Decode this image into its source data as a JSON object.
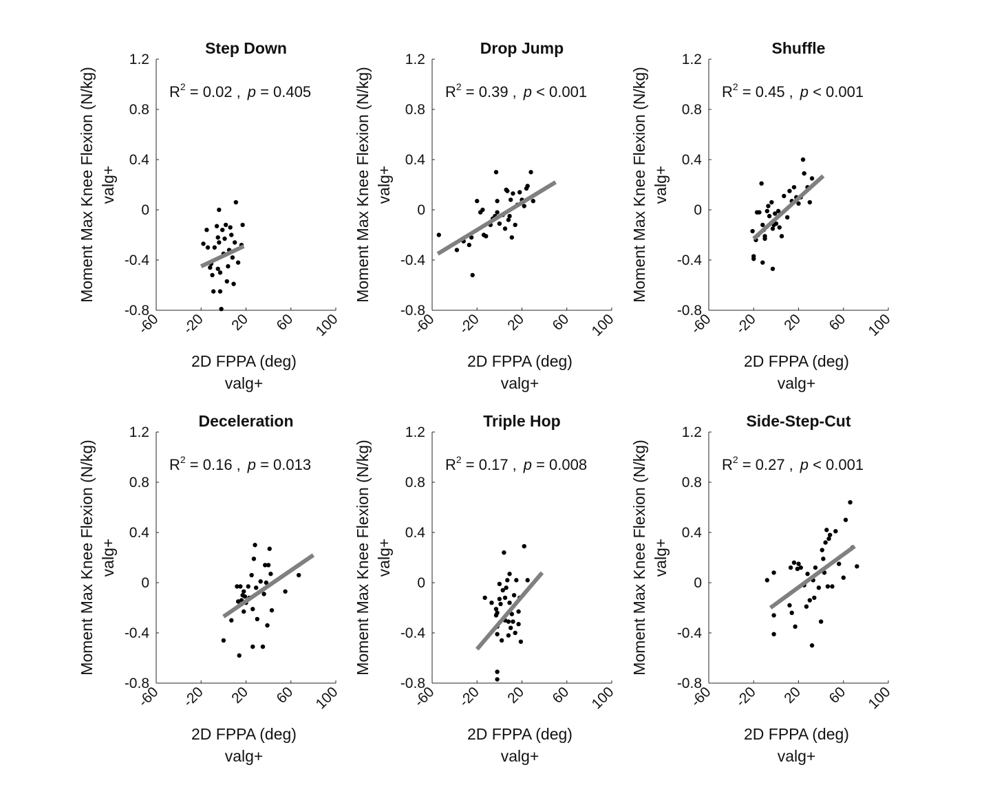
{
  "figure": {
    "xlabel": "2D FPPA (deg)",
    "xsublabel": "valg+",
    "ylabel": "Moment Max Knee Flexion (N/kg)",
    "ysublabel": "valg+",
    "xlim": [
      -60,
      100
    ],
    "ylim": [
      -0.8,
      1.2
    ],
    "xticks": [
      "-60",
      "-20",
      "20",
      "60",
      "100"
    ],
    "yticks": [
      "-0.8",
      "-0.4",
      "0",
      "0.4",
      "0.8",
      "1.2"
    ],
    "r2_prefix": "R",
    "r2_sup": "2",
    "r2_eq": " = ",
    "p_symbol": "p",
    "colors": {
      "points": "#000000",
      "fit": "#808080",
      "axis": "#262626"
    }
  },
  "chart_data": [
    {
      "type": "scatter",
      "title": "Step Down",
      "r2": "0.02",
      "p_text": " = 0.405",
      "fit": {
        "x": [
          -20,
          18
        ],
        "y": [
          -0.45,
          -0.29
        ]
      },
      "points": [
        [
          -18,
          -0.27
        ],
        [
          -15,
          -0.16
        ],
        [
          -14,
          -0.3
        ],
        [
          -12,
          -0.46
        ],
        [
          -11,
          -0.43
        ],
        [
          -10,
          -0.52
        ],
        [
          -9,
          -0.65
        ],
        [
          -8,
          -0.3
        ],
        [
          -6,
          -0.13
        ],
        [
          -5,
          -0.22
        ],
        [
          -5,
          -0.47
        ],
        [
          -4,
          -0.0
        ],
        [
          -4,
          -0.26
        ],
        [
          -3,
          -0.5
        ],
        [
          -3,
          -0.65
        ],
        [
          -2,
          -0.79
        ],
        [
          -1,
          -0.16
        ],
        [
          0,
          -0.35
        ],
        [
          1,
          -0.23
        ],
        [
          2,
          -0.12
        ],
        [
          3,
          -0.57
        ],
        [
          4,
          -0.45
        ],
        [
          5,
          -0.32
        ],
        [
          6,
          -0.14
        ],
        [
          7,
          -0.2
        ],
        [
          8,
          -0.38
        ],
        [
          9,
          -0.59
        ],
        [
          10,
          -0.26
        ],
        [
          11,
          0.06
        ],
        [
          13,
          -0.42
        ],
        [
          16,
          -0.28
        ],
        [
          17,
          -0.12
        ]
      ]
    },
    {
      "type": "scatter",
      "title": "Drop Jump",
      "r2": "0.39",
      "p_text": " < 0.001",
      "fit": {
        "x": [
          -55,
          50
        ],
        "y": [
          -0.35,
          0.22
        ]
      },
      "points": [
        [
          -54,
          -0.2
        ],
        [
          -38,
          -0.32
        ],
        [
          -32,
          -0.25
        ],
        [
          -27,
          -0.28
        ],
        [
          -25,
          -0.22
        ],
        [
          -24,
          -0.52
        ],
        [
          -20,
          0.07
        ],
        [
          -17,
          -0.02
        ],
        [
          -15,
          -0.0
        ],
        [
          -14,
          -0.2
        ],
        [
          -12,
          -0.21
        ],
        [
          -8,
          -0.12
        ],
        [
          -6,
          -0.07
        ],
        [
          -4,
          -0.05
        ],
        [
          -3,
          0.3
        ],
        [
          -2,
          0.07
        ],
        [
          -2,
          -0.02
        ],
        [
          0,
          -0.11
        ],
        [
          3,
          -0.04
        ],
        [
          5,
          -0.15
        ],
        [
          6,
          0.16
        ],
        [
          7,
          0.15
        ],
        [
          8,
          -0.08
        ],
        [
          9,
          -0.05
        ],
        [
          10,
          0.08
        ],
        [
          11,
          -0.22
        ],
        [
          12,
          0.13
        ],
        [
          14,
          -0.12
        ],
        [
          16,
          0.04
        ],
        [
          18,
          0.14
        ],
        [
          20,
          0.08
        ],
        [
          22,
          0.03
        ],
        [
          24,
          0.17
        ],
        [
          25,
          0.19
        ],
        [
          28,
          0.3
        ],
        [
          30,
          0.07
        ]
      ]
    },
    {
      "type": "scatter",
      "title": "Shuffle",
      "r2": "0.45",
      "p_text": " < 0.001",
      "fit": {
        "x": [
          -20,
          42
        ],
        "y": [
          -0.23,
          0.27
        ]
      },
      "points": [
        [
          -21,
          -0.17
        ],
        [
          -20,
          -0.37
        ],
        [
          -20,
          -0.39
        ],
        [
          -18,
          -0.24
        ],
        [
          -17,
          -0.02
        ],
        [
          -16,
          -0.2
        ],
        [
          -15,
          -0.02
        ],
        [
          -13,
          0.21
        ],
        [
          -12,
          -0.42
        ],
        [
          -12,
          -0.12
        ],
        [
          -11,
          -0.16
        ],
        [
          -10,
          -0.23
        ],
        [
          -10,
          -0.21
        ],
        [
          -8,
          -0.01
        ],
        [
          -7,
          0.03
        ],
        [
          -6,
          -0.05
        ],
        [
          -4,
          0.06
        ],
        [
          -3,
          -0.47
        ],
        [
          -3,
          -0.15
        ],
        [
          -2,
          -0.12
        ],
        [
          -1,
          -0.03
        ],
        [
          0,
          -0.11
        ],
        [
          2,
          -0.01
        ],
        [
          3,
          -0.14
        ],
        [
          5,
          -0.21
        ],
        [
          7,
          0.11
        ],
        [
          10,
          -0.06
        ],
        [
          12,
          0.15
        ],
        [
          14,
          0.07
        ],
        [
          16,
          0.18
        ],
        [
          18,
          0.1
        ],
        [
          20,
          0.05
        ],
        [
          22,
          0.1
        ],
        [
          24,
          0.4
        ],
        [
          25,
          0.29
        ],
        [
          28,
          0.18
        ],
        [
          30,
          0.06
        ],
        [
          32,
          0.25
        ]
      ]
    },
    {
      "type": "scatter",
      "title": "Deceleration",
      "r2": "0.16",
      "p_text": " = 0.013",
      "fit": {
        "x": [
          0,
          80
        ],
        "y": [
          -0.27,
          0.22
        ]
      },
      "points": [
        [
          0,
          -0.46
        ],
        [
          7,
          -0.3
        ],
        [
          12,
          -0.03
        ],
        [
          13,
          -0.15
        ],
        [
          14,
          -0.58
        ],
        [
          15,
          -0.03
        ],
        [
          16,
          -0.14
        ],
        [
          17,
          -0.1
        ],
        [
          18,
          -0.07
        ],
        [
          18,
          -0.23
        ],
        [
          19,
          -0.11
        ],
        [
          20,
          -0.16
        ],
        [
          22,
          -0.03
        ],
        [
          23,
          -0.12
        ],
        [
          25,
          0.06
        ],
        [
          26,
          -0.51
        ],
        [
          26,
          -0.21
        ],
        [
          27,
          0.19
        ],
        [
          28,
          0.3
        ],
        [
          29,
          -0.04
        ],
        [
          30,
          -0.29
        ],
        [
          33,
          0.01
        ],
        [
          35,
          -0.51
        ],
        [
          36,
          -0.09
        ],
        [
          37,
          0.14
        ],
        [
          38,
          0.0
        ],
        [
          39,
          -0.34
        ],
        [
          40,
          0.14
        ],
        [
          41,
          0.27
        ],
        [
          42,
          0.07
        ],
        [
          43,
          -0.22
        ],
        [
          55,
          -0.07
        ],
        [
          67,
          0.06
        ]
      ]
    },
    {
      "type": "scatter",
      "title": "Triple Hop",
      "r2": "0.17",
      "p_text": " = 0.008",
      "fit": {
        "x": [
          -20,
          38
        ],
        "y": [
          -0.53,
          0.08
        ]
      },
      "points": [
        [
          -13,
          -0.12
        ],
        [
          -7,
          -0.16
        ],
        [
          -3,
          -0.26
        ],
        [
          -3,
          -0.21
        ],
        [
          -2,
          -0.24
        ],
        [
          -2,
          -0.35
        ],
        [
          -2,
          -0.41
        ],
        [
          -2,
          -0.71
        ],
        [
          -2,
          -0.77
        ],
        [
          0,
          -0.01
        ],
        [
          0,
          -0.13
        ],
        [
          1,
          -0.17
        ],
        [
          2,
          -0.46
        ],
        [
          3,
          -0.06
        ],
        [
          4,
          -0.29
        ],
        [
          4,
          0.24
        ],
        [
          5,
          -0.12
        ],
        [
          5,
          -0.3
        ],
        [
          6,
          -0.04
        ],
        [
          7,
          0.02
        ],
        [
          8,
          -0.42
        ],
        [
          8,
          -0.31
        ],
        [
          9,
          0.07
        ],
        [
          9,
          -0.16
        ],
        [
          10,
          -0.36
        ],
        [
          11,
          -0.25
        ],
        [
          12,
          -0.31
        ],
        [
          13,
          -0.1
        ],
        [
          14,
          -0.4
        ],
        [
          15,
          0.02
        ],
        [
          17,
          -0.23
        ],
        [
          17,
          -0.33
        ],
        [
          18,
          -0.12
        ],
        [
          19,
          -0.47
        ],
        [
          22,
          0.29
        ],
        [
          25,
          0.02
        ]
      ]
    },
    {
      "type": "scatter",
      "title": "Side-Step-Cut",
      "r2": "0.27",
      "p_text": " < 0.001",
      "fit": {
        "x": [
          -5,
          70
        ],
        "y": [
          -0.2,
          0.29
        ]
      },
      "points": [
        [
          -8,
          0.02
        ],
        [
          -2,
          0.08
        ],
        [
          -2,
          -0.26
        ],
        [
          -2,
          -0.41
        ],
        [
          12,
          -0.18
        ],
        [
          13,
          0.12
        ],
        [
          14,
          -0.24
        ],
        [
          16,
          0.16
        ],
        [
          17,
          -0.35
        ],
        [
          19,
          0.11
        ],
        [
          20,
          0.15
        ],
        [
          22,
          0.12
        ],
        [
          25,
          -0.02
        ],
        [
          27,
          -0.19
        ],
        [
          28,
          0.07
        ],
        [
          30,
          -0.14
        ],
        [
          32,
          -0.5
        ],
        [
          33,
          0.02
        ],
        [
          34,
          -0.12
        ],
        [
          35,
          0.12
        ],
        [
          38,
          -0.04
        ],
        [
          40,
          -0.31
        ],
        [
          41,
          0.26
        ],
        [
          42,
          0.19
        ],
        [
          43,
          0.08
        ],
        [
          44,
          0.32
        ],
        [
          45,
          0.42
        ],
        [
          46,
          -0.03
        ],
        [
          47,
          0.35
        ],
        [
          48,
          0.38
        ],
        [
          50,
          -0.03
        ],
        [
          53,
          0.41
        ],
        [
          56,
          0.15
        ],
        [
          60,
          0.04
        ],
        [
          62,
          0.5
        ],
        [
          66,
          0.64
        ],
        [
          68,
          0.28
        ],
        [
          72,
          0.13
        ]
      ]
    }
  ]
}
